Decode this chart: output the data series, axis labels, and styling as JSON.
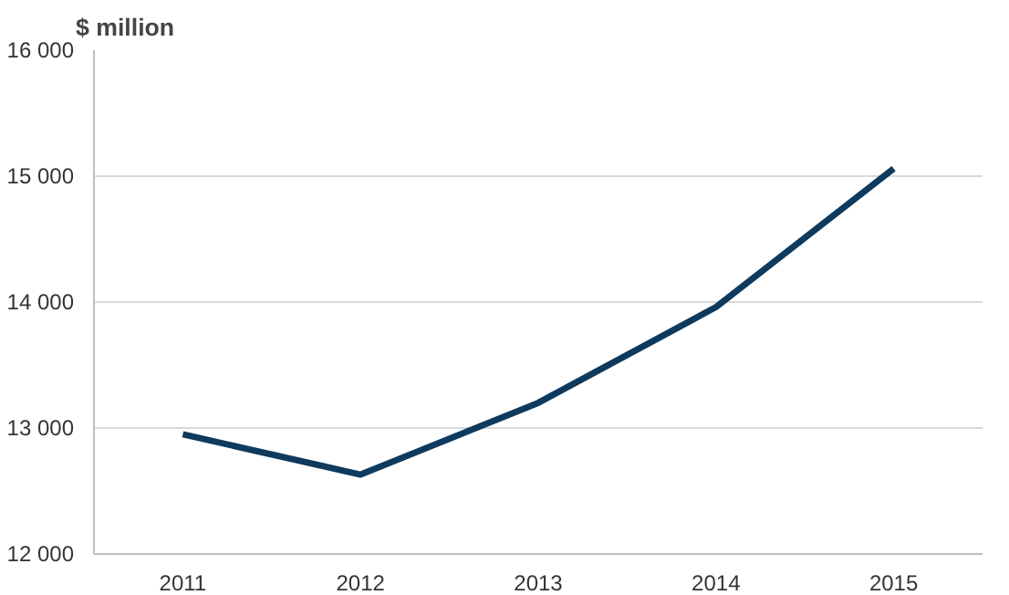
{
  "chart_data": {
    "type": "line",
    "ylabel": "$ million",
    "categories": [
      "2011",
      "2012",
      "2013",
      "2014",
      "2015"
    ],
    "series": [
      {
        "color": "#0e3a5e",
        "values": [
          12950,
          12630,
          13200,
          13960,
          15060
        ]
      }
    ],
    "ylim": [
      12000,
      16000
    ],
    "yticks": [
      {
        "value": 12000,
        "label": "12 000"
      },
      {
        "value": 13000,
        "label": "13 000"
      },
      {
        "value": 14000,
        "label": "14 000"
      },
      {
        "value": 15000,
        "label": "15 000"
      },
      {
        "value": 16000,
        "label": "16 000"
      }
    ],
    "grid": "y",
    "marker": "none",
    "line_style": "solid"
  }
}
